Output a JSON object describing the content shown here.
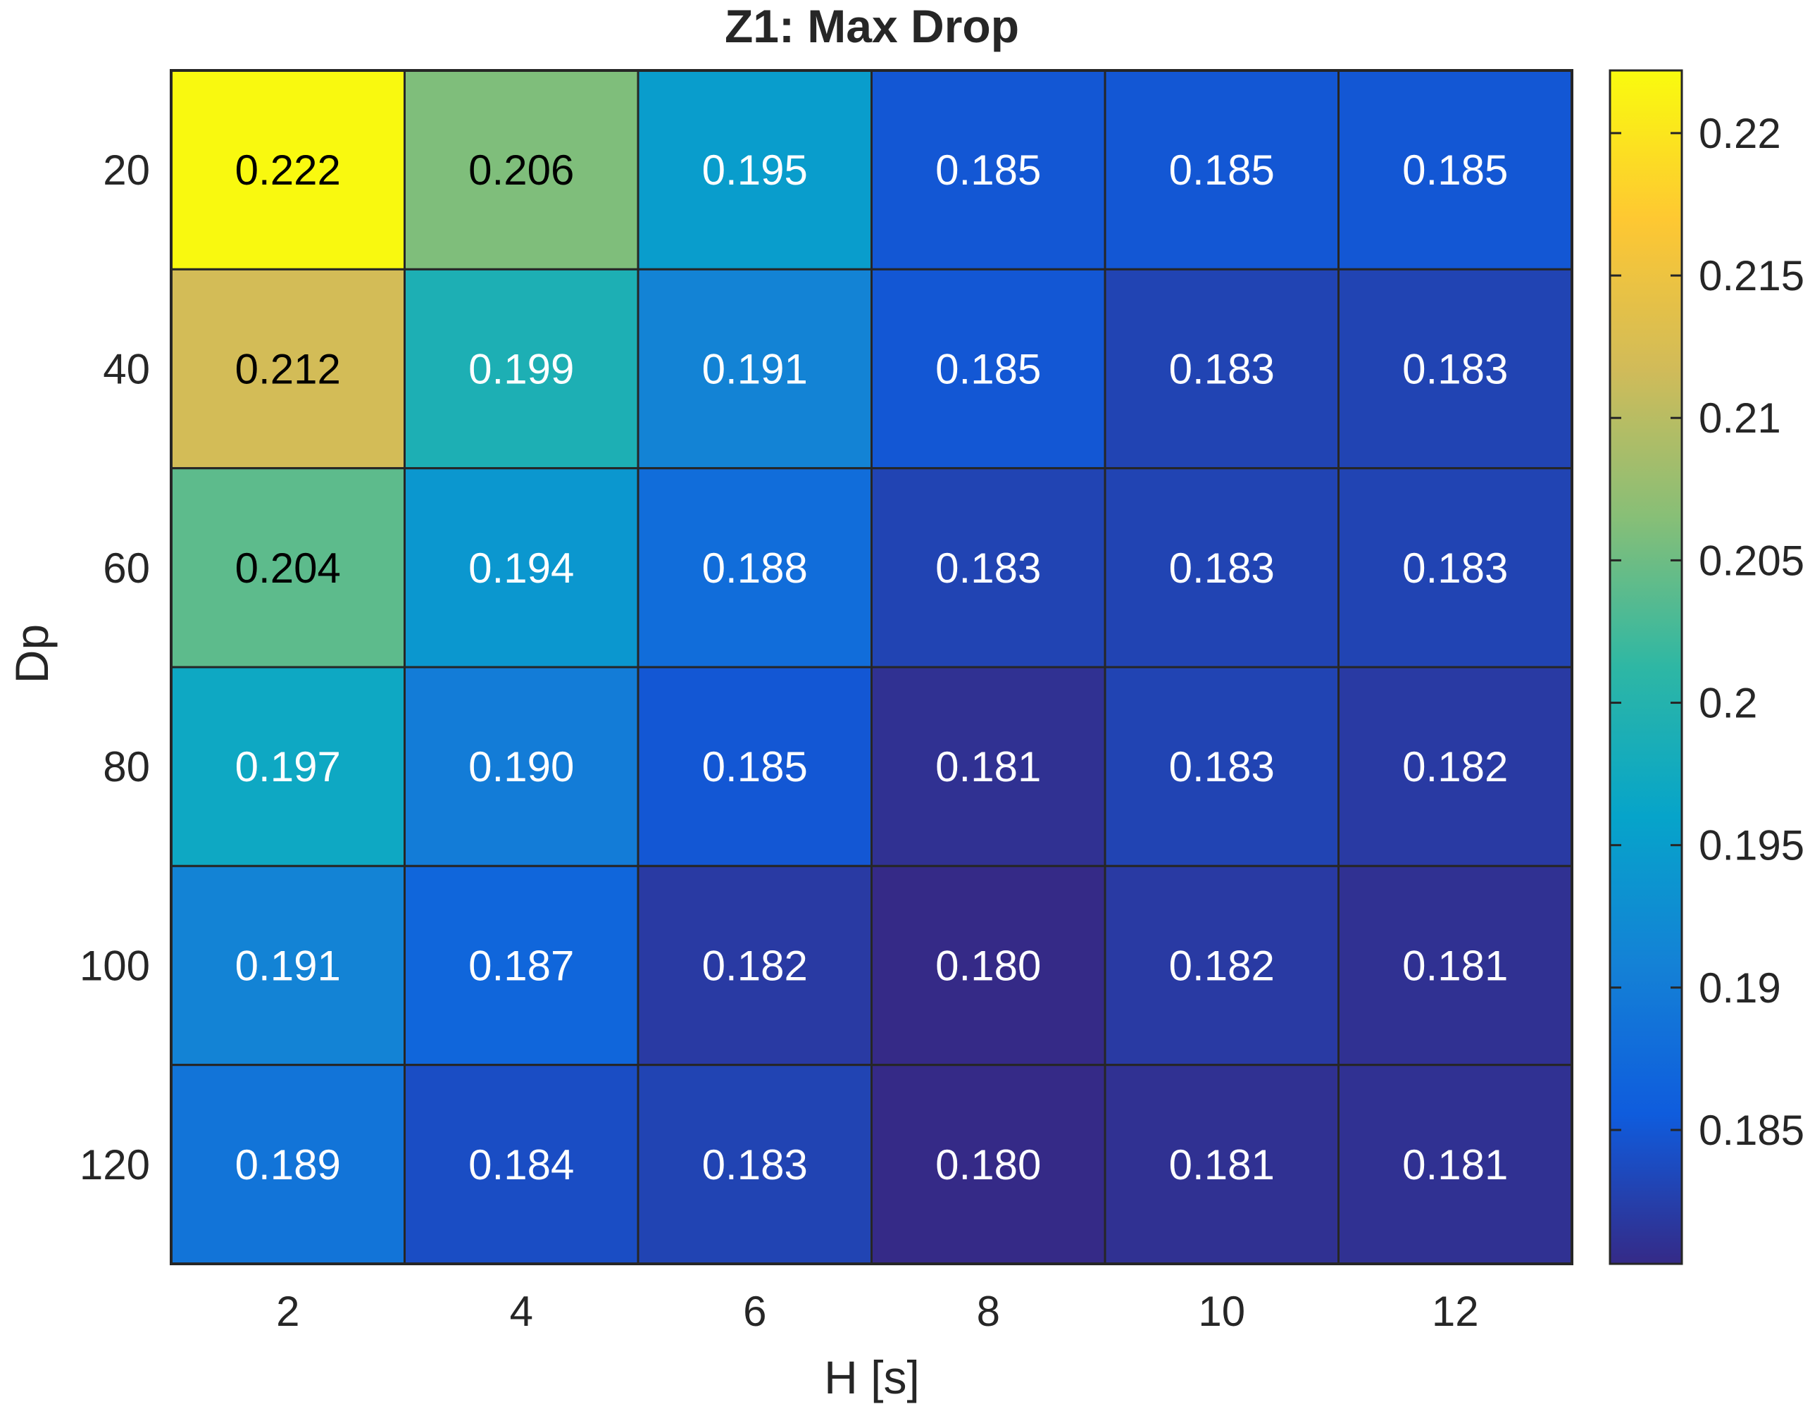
{
  "chart_data": {
    "type": "heatmap",
    "title": "Z1: Max Drop",
    "xlabel": "H [s]",
    "ylabel": "Dp",
    "x_categories": [
      "2",
      "4",
      "6",
      "8",
      "10",
      "12"
    ],
    "y_categories": [
      "20",
      "40",
      "60",
      "80",
      "100",
      "120"
    ],
    "values": [
      [
        0.222,
        0.206,
        0.195,
        0.185,
        0.185,
        0.185
      ],
      [
        0.212,
        0.199,
        0.191,
        0.185,
        0.183,
        0.183
      ],
      [
        0.204,
        0.194,
        0.188,
        0.183,
        0.183,
        0.183
      ],
      [
        0.197,
        0.19,
        0.185,
        0.181,
        0.183,
        0.182
      ],
      [
        0.191,
        0.187,
        0.182,
        0.18,
        0.182,
        0.181
      ],
      [
        0.189,
        0.184,
        0.183,
        0.18,
        0.181,
        0.181
      ]
    ],
    "value_labels": [
      [
        "0.222",
        "0.206",
        "0.195",
        "0.185",
        "0.185",
        "0.185"
      ],
      [
        "0.212",
        "0.199",
        "0.191",
        "0.185",
        "0.183",
        "0.183"
      ],
      [
        "0.204",
        "0.194",
        "0.188",
        "0.183",
        "0.183",
        "0.183"
      ],
      [
        "0.197",
        "0.190",
        "0.185",
        "0.181",
        "0.183",
        "0.182"
      ],
      [
        "0.191",
        "0.187",
        "0.182",
        "0.180",
        "0.182",
        "0.181"
      ],
      [
        "0.189",
        "0.184",
        "0.183",
        "0.180",
        "0.181",
        "0.181"
      ]
    ],
    "colorbar": {
      "range": [
        0.1803,
        0.2222
      ],
      "ticks": [
        0.185,
        0.19,
        0.195,
        0.2,
        0.205,
        0.21,
        0.215,
        0.22
      ],
      "tick_labels": [
        "0.185",
        "0.19",
        "0.195",
        "0.2",
        "0.205",
        "0.21",
        "0.215",
        "0.22"
      ],
      "colormap": "parula"
    },
    "grid": true,
    "legend": "colorbar-right"
  },
  "colors": {
    "cell_border": "#262626",
    "text_dark": "#000000",
    "text_light": "#ffffff",
    "axis_text": "#262626",
    "parula_stops": [
      "#352a87",
      "#0f5cdd",
      "#1481d6",
      "#06a4ca",
      "#2eb7a4",
      "#87bf77",
      "#d1bb59",
      "#fec832",
      "#f9fb0e"
    ]
  }
}
